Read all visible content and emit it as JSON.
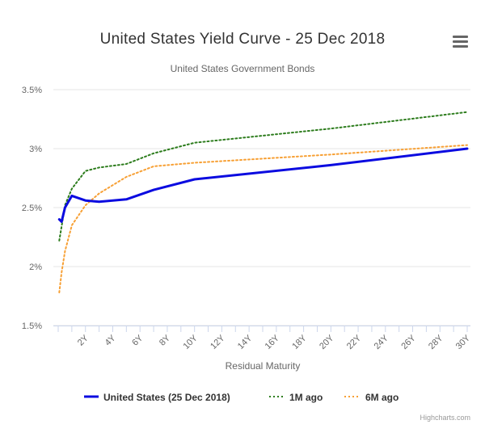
{
  "chart": {
    "title": "United States Yield Curve - 25 Dec 2018",
    "subtitle": "United States Government Bonds",
    "credits": "Highcharts.com"
  },
  "chart_data": {
    "type": "line",
    "title": "United States Yield Curve - 25 Dec 2018",
    "subtitle": "United States Government Bonds",
    "xlabel": "Residual Maturity",
    "ylabel": "",
    "xlim": [
      0,
      30
    ],
    "ylim": [
      1.5,
      3.5
    ],
    "x_ticks": [
      2,
      4,
      6,
      8,
      10,
      12,
      14,
      16,
      18,
      20,
      22,
      24,
      26,
      28,
      30
    ],
    "x_tick_labels": [
      "2Y",
      "4Y",
      "6Y",
      "8Y",
      "10Y",
      "12Y",
      "14Y",
      "16Y",
      "18Y",
      "20Y",
      "22Y",
      "24Y",
      "26Y",
      "28Y",
      "30Y"
    ],
    "y_ticks": [
      1.5,
      2,
      2.5,
      3,
      3.5
    ],
    "y_tick_labels": [
      "1.5%",
      "2%",
      "2.5%",
      "3%",
      "3.5%"
    ],
    "grid": "horizontal",
    "legend_position": "bottom-center",
    "series": [
      {
        "name": "United States (25 Dec 2018)",
        "style": "solid",
        "color": "#0b0be0",
        "points": [
          [
            0.08,
            2.4
          ],
          [
            0.25,
            2.38
          ],
          [
            0.5,
            2.5
          ],
          [
            1,
            2.6
          ],
          [
            2,
            2.56
          ],
          [
            3,
            2.55
          ],
          [
            5,
            2.57
          ],
          [
            7,
            2.65
          ],
          [
            10,
            2.74
          ],
          [
            20,
            2.86
          ],
          [
            30,
            3.0
          ]
        ]
      },
      {
        "name": "1M ago",
        "style": "dotted",
        "color": "#2e7d1e",
        "points": [
          [
            0.08,
            2.22
          ],
          [
            0.25,
            2.34
          ],
          [
            0.5,
            2.52
          ],
          [
            1,
            2.66
          ],
          [
            2,
            2.81
          ],
          [
            3,
            2.84
          ],
          [
            5,
            2.87
          ],
          [
            7,
            2.96
          ],
          [
            10,
            3.05
          ],
          [
            20,
            3.17
          ],
          [
            30,
            3.31
          ]
        ]
      },
      {
        "name": "6M ago",
        "style": "dotted",
        "color": "#f7a035",
        "points": [
          [
            0.08,
            1.78
          ],
          [
            0.25,
            1.95
          ],
          [
            0.5,
            2.13
          ],
          [
            1,
            2.35
          ],
          [
            2,
            2.52
          ],
          [
            3,
            2.62
          ],
          [
            5,
            2.76
          ],
          [
            7,
            2.85
          ],
          [
            10,
            2.88
          ],
          [
            20,
            2.95
          ],
          [
            30,
            3.03
          ]
        ]
      }
    ]
  }
}
